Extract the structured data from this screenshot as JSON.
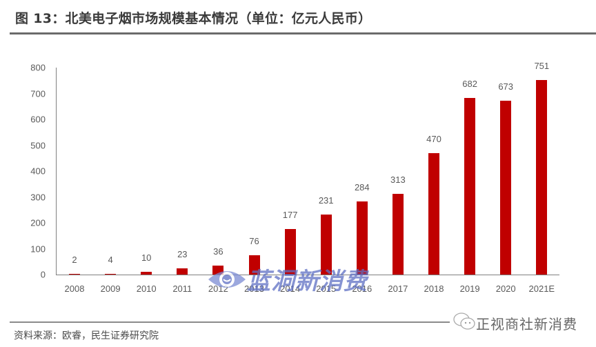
{
  "header": {
    "title": "图 13：北美电子烟市场规模基本情况（单位：亿元人民币）"
  },
  "chart_data": {
    "type": "bar",
    "title": "北美电子烟市场规模基本情况（单位：亿元人民币）",
    "figure_label": "图 13",
    "xlabel": "",
    "ylabel": "亿元人民币",
    "ylim": [
      0,
      800
    ],
    "yticks": [
      0,
      100,
      200,
      300,
      400,
      500,
      600,
      700,
      800
    ],
    "grid": false,
    "legend": null,
    "bar_color": "#c00000",
    "categories": [
      "2008",
      "2009",
      "2010",
      "2011",
      "2012",
      "2013",
      "2014",
      "2015",
      "2016",
      "2017",
      "2018",
      "2019",
      "2020",
      "2021E"
    ],
    "values": [
      2,
      4,
      10,
      23,
      36,
      76,
      177,
      231,
      284,
      313,
      470,
      682,
      673,
      751
    ],
    "data_labels": [
      "2",
      "4",
      "10",
      "23",
      "36",
      "76",
      "177",
      "231",
      "284",
      "313",
      "470",
      "682",
      "673",
      "751"
    ]
  },
  "yaxis": {
    "ticks": [
      "0",
      "100",
      "200",
      "300",
      "400",
      "500",
      "600",
      "700",
      "800"
    ]
  },
  "watermark": {
    "text": "蓝洞新消费",
    "icon": "eye-icon"
  },
  "footer": {
    "source": "资料来源：欧睿，民生证券研究院",
    "brand": "正视商社新消费",
    "brand_icon": "wechat-icon"
  },
  "colors": {
    "bar": "#c00000",
    "axis": "#7f7f7f",
    "text": "#595959",
    "watermark": "#5e6fc4"
  }
}
